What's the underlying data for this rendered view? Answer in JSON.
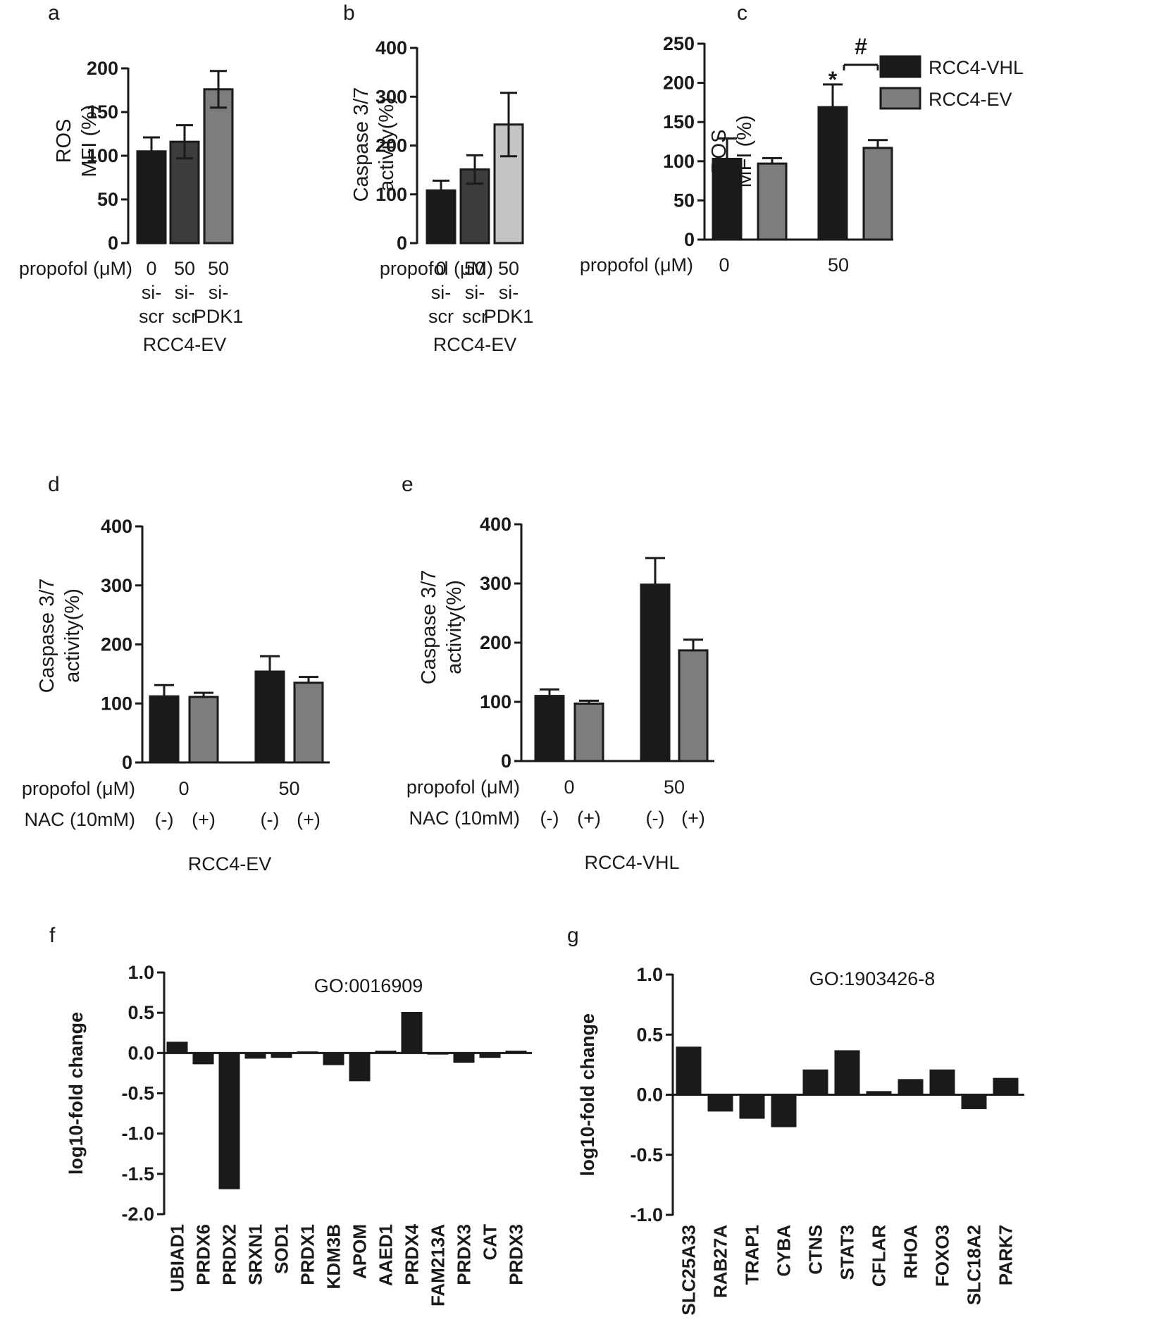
{
  "colors": {
    "black_bar": "#1a1a1a",
    "dark_gray_bar": "#3c3c3c",
    "medium_gray_bar": "#7d7d7d",
    "light_gray_bar": "#c4c4c4"
  },
  "chart_data": [
    {
      "id": "a",
      "panel": "a",
      "type": "bar",
      "ylabel": [
        "ROS",
        "MFI  (%)"
      ],
      "ylim": [
        0,
        200
      ],
      "yticks": [
        0,
        50,
        100,
        150,
        200
      ],
      "row_labels": [
        "propofol (μM)"
      ],
      "group_label": "RCC4-EV",
      "categories": [
        {
          "lines": [
            "0",
            "si-",
            "scr"
          ],
          "value": 105,
          "error": 16,
          "color": "black_bar"
        },
        {
          "lines": [
            "50",
            "si-",
            "scr"
          ],
          "value": 116,
          "error": 19,
          "color": "dark_gray_bar"
        },
        {
          "lines": [
            "50",
            "si-",
            "PDK1"
          ],
          "value": 176,
          "error": 21,
          "color": "medium_gray_bar"
        }
      ]
    },
    {
      "id": "b",
      "panel": "b",
      "type": "bar",
      "ylabel": [
        "Caspase 3/7",
        "activity(%)"
      ],
      "ylim": [
        0,
        400
      ],
      "yticks": [
        0,
        100,
        200,
        300,
        400
      ],
      "row_labels": [
        "propofol (μM)"
      ],
      "group_label": "RCC4-EV",
      "categories": [
        {
          "lines": [
            "0",
            "si-",
            "scr"
          ],
          "value": 108,
          "error": 20,
          "color": "black_bar"
        },
        {
          "lines": [
            "50",
            "si-",
            "scr"
          ],
          "value": 151,
          "error": 29,
          "color": "dark_gray_bar"
        },
        {
          "lines": [
            "50",
            "si-",
            "PDK1"
          ],
          "value": 243,
          "error": 65,
          "color": "light_gray_bar"
        }
      ]
    },
    {
      "id": "c",
      "panel": "c",
      "type": "bar",
      "ylabel": [
        "ROS",
        "MFI  (%)"
      ],
      "ylim": [
        0,
        250
      ],
      "yticks": [
        0,
        50,
        100,
        150,
        200,
        250
      ],
      "row_labels": [
        "propofol (μM)"
      ],
      "groups": [
        "0",
        "50"
      ],
      "series": [
        {
          "name": "RCC4-VHL",
          "values": [
            103,
            169
          ],
          "errors": [
            26,
            29
          ],
          "color": "black_bar"
        },
        {
          "name": "RCC4-EV",
          "values": [
            97,
            117
          ],
          "errors": [
            7,
            10
          ],
          "color": "medium_gray_bar"
        }
      ],
      "annotations": {
        "star": "*",
        "hash": "#"
      }
    },
    {
      "id": "d",
      "panel": "d",
      "type": "bar",
      "ylabel": [
        "Caspase 3/7",
        "activity(%)"
      ],
      "ylim": [
        0,
        400
      ],
      "yticks": [
        0,
        100,
        200,
        300,
        400
      ],
      "row_labels": [
        "propofol (μM)",
        "NAC (10mM)"
      ],
      "groups": [
        "0",
        "50"
      ],
      "nac": [
        "(-)",
        "(+)"
      ],
      "group_label": "RCC4-EV",
      "series": [
        {
          "values": [
            112,
            154
          ],
          "errors": [
            19,
            26
          ],
          "color": "black_bar"
        },
        {
          "values": [
            111,
            135
          ],
          "errors": [
            7,
            10
          ],
          "color": "medium_gray_bar"
        }
      ]
    },
    {
      "id": "e",
      "panel": "e",
      "type": "bar",
      "ylabel": [
        "Caspase 3/7",
        "activity(%)"
      ],
      "ylim": [
        0,
        400
      ],
      "yticks": [
        0,
        100,
        200,
        300,
        400
      ],
      "row_labels": [
        "propofol (μM)",
        "NAC (10mM)"
      ],
      "groups": [
        "0",
        "50"
      ],
      "nac": [
        "(-)",
        "(+)"
      ],
      "group_label": "RCC4-VHL",
      "series": [
        {
          "values": [
            110,
            97
          ],
          "errors": [
            11,
            5
          ],
          "color": "black_bar"
        },
        {
          "values": [
            298,
            187
          ],
          "errors": [
            45,
            18
          ],
          "color": "medium_gray_bar"
        }
      ],
      "series_order": "pairs"
    },
    {
      "id": "f",
      "panel": "f",
      "type": "bar",
      "title": "GO:0016909",
      "ylabel": "log10-fold change",
      "ylim": [
        -2.0,
        1.0
      ],
      "yticks": [
        "1.0",
        "0.5",
        "0.0",
        "-0.5",
        "-1.0",
        "-1.5",
        "-2.0"
      ],
      "categories": [
        "UBIAD1",
        "PRDX6",
        "PRDX2",
        "SRXN1",
        "SOD1",
        "PRDX1",
        "KDM3B",
        "APOM",
        "AAED1",
        "PRDX4",
        "FAM213A",
        "PRDX3",
        "CAT",
        "PRDX3"
      ],
      "values": [
        0.14,
        -0.14,
        -1.69,
        -0.07,
        -0.06,
        0.02,
        -0.15,
        -0.35,
        0.03,
        0.51,
        -0.02,
        -0.12,
        -0.06,
        0.03
      ]
    },
    {
      "id": "g",
      "panel": "g",
      "type": "bar",
      "title": "GO:1903426-8",
      "ylabel": "log10-fold change",
      "ylim": [
        -1.0,
        1.0
      ],
      "yticks": [
        "1.0",
        "0.5",
        "0.0",
        "-0.5",
        "-1.0"
      ],
      "categories": [
        "SLC25A33",
        "RAB27A",
        "TRAP1",
        "CYBA",
        "CTNS",
        "STAT3",
        "CFLAR",
        "RHOA",
        "FOXO3",
        "SLC18A2",
        "PARK7"
      ],
      "values": [
        0.4,
        -0.14,
        -0.2,
        -0.27,
        0.21,
        0.37,
        0.03,
        0.13,
        0.21,
        -0.12,
        0.14
      ]
    }
  ]
}
